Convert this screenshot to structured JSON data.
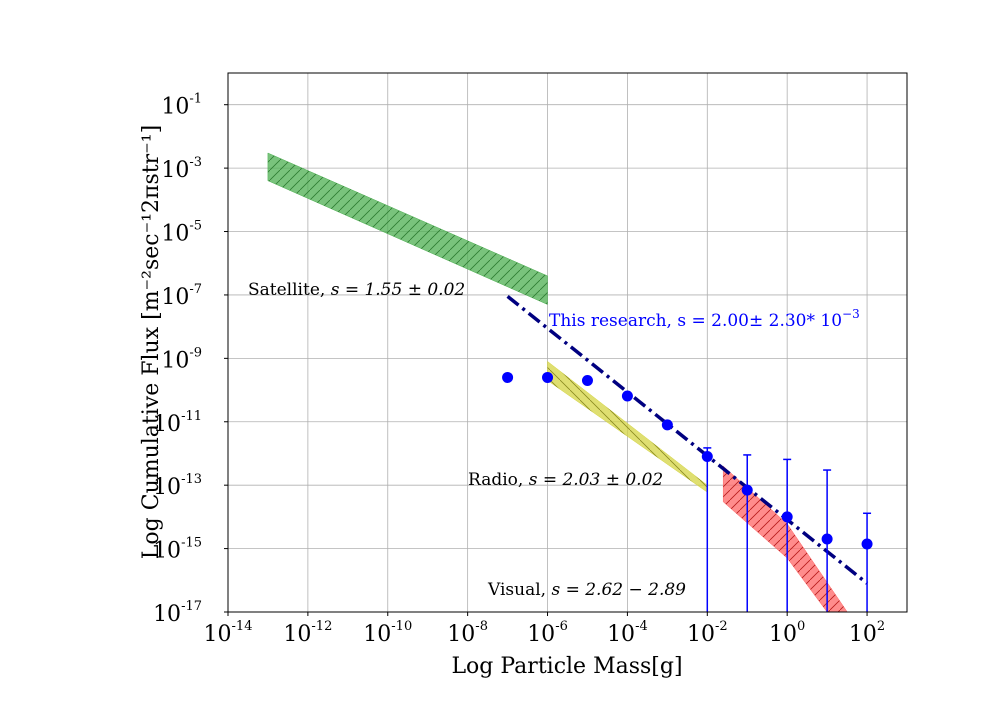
{
  "chart_data": {
    "type": "scatter",
    "xlabel": "Log Particle Mass[g]",
    "ylabel": "Log Cumulative Flux [m⁻²sec⁻¹2πstr⁻¹]",
    "xscale": "log",
    "yscale": "log",
    "xlim": [
      1e-14,
      1000
    ],
    "ylim": [
      1e-17,
      1
    ],
    "grid": true,
    "x_ticks": [
      {
        "base": "10",
        "exp": "-14"
      },
      {
        "base": "10",
        "exp": "-12"
      },
      {
        "base": "10",
        "exp": "-10"
      },
      {
        "base": "10",
        "exp": "-8"
      },
      {
        "base": "10",
        "exp": "-6"
      },
      {
        "base": "10",
        "exp": "-4"
      },
      {
        "base": "10",
        "exp": "-2"
      },
      {
        "base": "10",
        "exp": "0"
      },
      {
        "base": "10",
        "exp": "2"
      }
    ],
    "y_ticks": [
      {
        "base": "10",
        "exp": "-17"
      },
      {
        "base": "10",
        "exp": "-15"
      },
      {
        "base": "10",
        "exp": "-13"
      },
      {
        "base": "10",
        "exp": "-11"
      },
      {
        "base": "10",
        "exp": "-9"
      },
      {
        "base": "10",
        "exp": "-7"
      },
      {
        "base": "10",
        "exp": "-5"
      },
      {
        "base": "10",
        "exp": "-3"
      },
      {
        "base": "10",
        "exp": "-1"
      }
    ],
    "series": [
      {
        "type": "scatter",
        "color": "#0000ff",
        "points": [
          {
            "x": 1e-07,
            "y": 2.5e-10
          },
          {
            "x": 1e-06,
            "y": 2.5e-10
          },
          {
            "x": 1e-05,
            "y": 2e-10
          },
          {
            "x": 0.0001,
            "y": 6.5e-11
          },
          {
            "x": 0.001,
            "y": 8e-12
          },
          {
            "x": 0.01,
            "y": 8e-13,
            "yerr_low": 1e-17,
            "yerr_high": 1.5e-12
          },
          {
            "x": 0.1,
            "y": 7e-14,
            "yerr_low": 1e-17,
            "yerr_high": 9e-13
          },
          {
            "x": 1,
            "y": 1e-14,
            "yerr_low": 1e-17,
            "yerr_high": 6.5e-13
          },
          {
            "x": 10,
            "y": 2e-15,
            "yerr_low": 1e-17,
            "yerr_high": 3e-13
          },
          {
            "x": 100,
            "y": 1.4e-15,
            "yerr_low": 1e-17,
            "yerr_high": 1.3e-14
          }
        ]
      },
      {
        "type": "line",
        "style": "dash-dot",
        "color": "#000080",
        "x": [
          1e-07,
          100
        ],
        "y": [
          9e-08,
          8e-17
        ]
      }
    ],
    "bands": [
      {
        "color": "#4caf50",
        "label": "Satellite, s = 1.55 ± 0.02",
        "polygon": [
          [
            1e-13,
            0.003
          ],
          [
            1e-06,
            4e-07
          ],
          [
            1e-06,
            5e-08
          ],
          [
            1e-13,
            0.0004
          ]
        ]
      },
      {
        "color": "#d4d442",
        "label": "Radio, s = 2.03 ± 0.02",
        "polygon": [
          [
            1e-06,
            8e-10
          ],
          [
            0.01,
            1e-13
          ],
          [
            0.01,
            6e-14
          ],
          [
            1e-06,
            2e-10
          ]
        ]
      },
      {
        "color": "#ff6666",
        "label": "Visual, s = 2.62 − 2.89",
        "polygon": [
          [
            0.025,
            4e-13
          ],
          [
            1,
            6e-15
          ],
          [
            32,
            1e-17
          ],
          [
            10,
            1e-17
          ],
          [
            1,
            5e-16
          ],
          [
            0.025,
            3e-14
          ]
        ]
      }
    ],
    "annotations": [
      {
        "text": "Satellite, ",
        "math": "s = 1.55 ± 0.02",
        "color": "#000000"
      },
      {
        "text": "Radio, ",
        "math": "s = 2.03 ± 0.02",
        "color": "#000000"
      },
      {
        "text": "Visual, ",
        "math": "s = 2.62 − 2.89",
        "color": "#000000"
      },
      {
        "text": "This research, s = 2.00± 2.30* 10",
        "sup": "−3",
        "color": "#0000ff"
      }
    ]
  }
}
